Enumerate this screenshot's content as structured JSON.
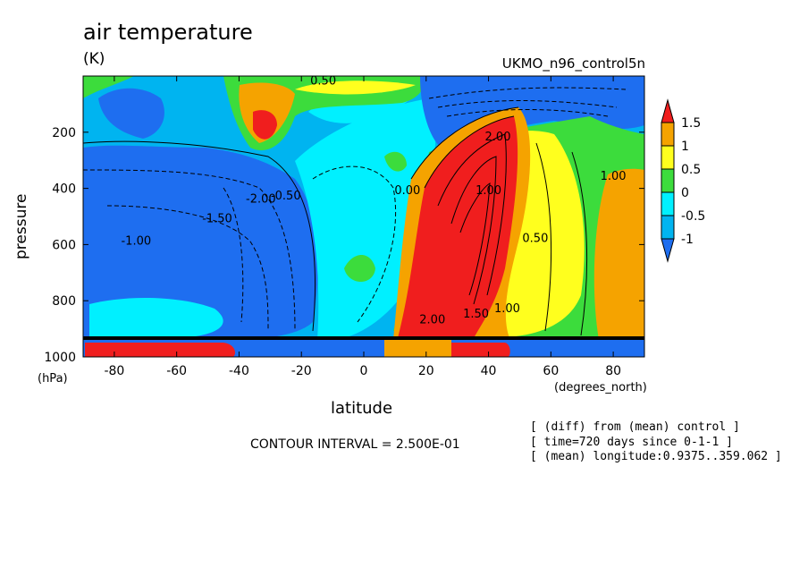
{
  "header": {
    "title": "air temperature",
    "units": "(K)",
    "run": "UKMO_n96_control5n"
  },
  "footer": {
    "contour_interval": "CONTOUR INTERVAL = 2.500E-01",
    "info": [
      "[ (diff) from (mean) control ]",
      "[ time=720 days since 0-1-1 ]",
      "[ (mean) longitude:0.9375..359.062 ]"
    ]
  },
  "colors": {
    "lt_-1": "#1e6ef0",
    "-1_-0.5": "#00b4f0",
    "-0.5_0": "#00f0ff",
    "0_0.5": "#3cdc3c",
    "0.5_1": "#ffff1e",
    "1_1.5": "#f5a300",
    "gt_1.5": "#f01e1e"
  },
  "chart_data": {
    "type": "contour",
    "title": "air temperature",
    "units": "(K)",
    "xlabel": "latitude",
    "x_units": "(degrees_north)",
    "ylabel": "pressure",
    "y_units": "(hPa)",
    "xlim": [
      -90,
      90
    ],
    "ylim": [
      1000,
      0
    ],
    "x_ticks": [
      -80,
      -60,
      -40,
      -20,
      0,
      20,
      40,
      60,
      80
    ],
    "y_ticks": [
      200,
      400,
      600,
      800,
      1000
    ],
    "contour_interval": 0.25,
    "colorbar": {
      "levels": [
        -1,
        -0.5,
        0,
        0.5,
        1,
        1.5
      ],
      "labels": [
        "-1",
        "-0.5",
        "0",
        "0.5",
        "1",
        "1.5"
      ]
    },
    "contour_labels": [
      {
        "text": "0.50",
        "lat": -13,
        "p": 30
      },
      {
        "text": "-0.50",
        "lat": -25,
        "p": 440
      },
      {
        "text": "-1.50",
        "lat": -47,
        "p": 520
      },
      {
        "text": "-1.00",
        "lat": -73,
        "p": 600
      },
      {
        "text": "-2.00",
        "lat": -33,
        "p": 450
      },
      {
        "text": "0.00",
        "lat": 14,
        "p": 420
      },
      {
        "text": "1.00",
        "lat": 40,
        "p": 420
      },
      {
        "text": "2.00",
        "lat": 43,
        "p": 230
      },
      {
        "text": "0.50",
        "lat": 55,
        "p": 590
      },
      {
        "text": "1.00",
        "lat": 46,
        "p": 840
      },
      {
        "text": "1.00",
        "lat": 80,
        "p": 370
      },
      {
        "text": "2.00",
        "lat": 22,
        "p": 880
      },
      {
        "text": "1.50",
        "lat": 36,
        "p": 860
      }
    ]
  }
}
